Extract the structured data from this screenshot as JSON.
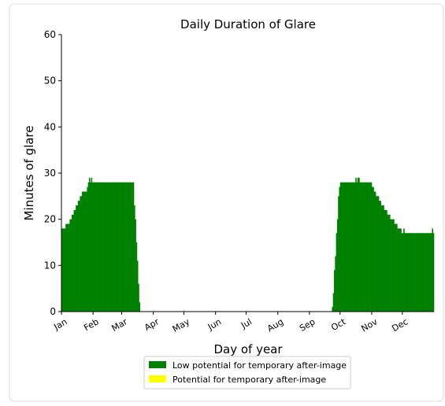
{
  "chart_data": {
    "type": "bar",
    "title": "Daily Duration of Glare",
    "x_label": "Day of year",
    "y_label": "Minutes of glare",
    "color": "#008000",
    "values": [
      18,
      18,
      18,
      18,
      19,
      19,
      19,
      19,
      20,
      20,
      21,
      21,
      22,
      22,
      23,
      23,
      24,
      24,
      25,
      25,
      26,
      26,
      26,
      26,
      26,
      27,
      28,
      29,
      28,
      29,
      28,
      28,
      28,
      28,
      28,
      28,
      28,
      28,
      28,
      28,
      28,
      28,
      28,
      28,
      28,
      28,
      28,
      28,
      28,
      28,
      28,
      28,
      28,
      28,
      28,
      28,
      28,
      28,
      28,
      28,
      28,
      28,
      28,
      28,
      28,
      28,
      28,
      28,
      28,
      28,
      28,
      23,
      20,
      15,
      11,
      6,
      2,
      0,
      0,
      0,
      0,
      0,
      0,
      0,
      0,
      0,
      0,
      0,
      0,
      0,
      0,
      0,
      0,
      0,
      0,
      0,
      0,
      0,
      0,
      0,
      0,
      0,
      0,
      0,
      0,
      0,
      0,
      0,
      0,
      0,
      0,
      0,
      0,
      0,
      0,
      0,
      0,
      0,
      0,
      0,
      0,
      0,
      0,
      0,
      0,
      0,
      0,
      0,
      0,
      0,
      0,
      0,
      0,
      0,
      0,
      0,
      0,
      0,
      0,
      0,
      0,
      0,
      0,
      0,
      0,
      0,
      0,
      0,
      0,
      0,
      0,
      0,
      0,
      0,
      0,
      0,
      0,
      0,
      0,
      0,
      0,
      0,
      0,
      0,
      0,
      0,
      0,
      0,
      0,
      0,
      0,
      0,
      0,
      0,
      0,
      0,
      0,
      0,
      0,
      0,
      0,
      0,
      0,
      0,
      0,
      0,
      0,
      0,
      0,
      0,
      0,
      0,
      0,
      0,
      0,
      0,
      0,
      0,
      0,
      0,
      0,
      0,
      0,
      0,
      0,
      0,
      0,
      0,
      0,
      0,
      0,
      0,
      0,
      0,
      0,
      0,
      0,
      0,
      0,
      0,
      0,
      0,
      0,
      0,
      0,
      0,
      0,
      0,
      0,
      0,
      0,
      0,
      0,
      0,
      0,
      0,
      0,
      0,
      0,
      0,
      0,
      0,
      0,
      0,
      0,
      0,
      0,
      0,
      0,
      0,
      0,
      0,
      0,
      0,
      0,
      0,
      0,
      0,
      0,
      0,
      0,
      0,
      0,
      0,
      0,
      1,
      4,
      9,
      12,
      17,
      20,
      25,
      27,
      28,
      28,
      28,
      28,
      28,
      28,
      28,
      28,
      28,
      28,
      28,
      28,
      28,
      28,
      28,
      29,
      28,
      29,
      29,
      28,
      28,
      28,
      28,
      28,
      28,
      28,
      28,
      28,
      28,
      28,
      28,
      27,
      27,
      26,
      26,
      25,
      25,
      25,
      24,
      24,
      23,
      23,
      23,
      22,
      22,
      22,
      21,
      21,
      21,
      20,
      20,
      20,
      20,
      19,
      19,
      19,
      18,
      18,
      18,
      18,
      17,
      17,
      18,
      17,
      17,
      17,
      17,
      17,
      17,
      17,
      17,
      17,
      17,
      17,
      17,
      17,
      17,
      17,
      17,
      17,
      17,
      17,
      17,
      17,
      17,
      17,
      17,
      17,
      17,
      17,
      18,
      17
    ],
    "xlim": [
      0,
      365
    ],
    "xticks": [
      {
        "value": 0,
        "label": "Jan"
      },
      {
        "value": 31,
        "label": "Feb"
      },
      {
        "value": 59,
        "label": "Mar"
      },
      {
        "value": 90,
        "label": "Apr"
      },
      {
        "value": 120,
        "label": "May"
      },
      {
        "value": 151,
        "label": "Jun"
      },
      {
        "value": 181,
        "label": "Jul"
      },
      {
        "value": 212,
        "label": "Aug"
      },
      {
        "value": 243,
        "label": "Sep"
      },
      {
        "value": 273,
        "label": "Oct"
      },
      {
        "value": 304,
        "label": "Nov"
      },
      {
        "value": 334,
        "label": "Dec"
      }
    ],
    "ylim": [
      0,
      60
    ],
    "yticks": [
      0,
      10,
      20,
      30,
      40,
      50,
      60
    ],
    "legend": [
      {
        "label": "Low potential for temporary after-image",
        "color": "#008000"
      },
      {
        "label": "Potential for temporary after-image",
        "color": "#ffff00"
      }
    ]
  }
}
